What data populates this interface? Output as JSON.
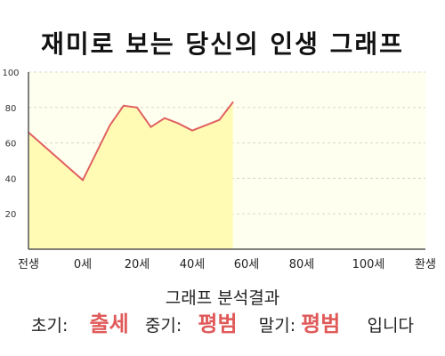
{
  "title": "재미로 보는 당신의 인생 그래프",
  "chart_data": {
    "type": "area",
    "x": [
      -1,
      0,
      10,
      15,
      20,
      25,
      30,
      35,
      40,
      45,
      50,
      55
    ],
    "x_tick_values": [
      -1,
      0,
      20,
      40,
      60,
      80,
      100,
      120
    ],
    "x_tick_labels": [
      "전생",
      "0세",
      "20세",
      "40세",
      "60세",
      "80세",
      "100세",
      "환생"
    ],
    "y_ticks": [
      20,
      40,
      60,
      80,
      100
    ],
    "ylim": [
      0,
      100
    ],
    "values": [
      66,
      39,
      70,
      81,
      80,
      69,
      74,
      71,
      67,
      70,
      73,
      83
    ],
    "colors": {
      "line": "#e06060",
      "fill": "#fffbb5",
      "background_top": "#fffff0",
      "axis": "#555555",
      "grid": "#d8d8c8"
    },
    "grid": true
  },
  "result": {
    "heading": "그래프 분석결과",
    "early_label": "초기:",
    "early_value": "출세",
    "middle_label": "중기:",
    "middle_value": "평범",
    "late_label": "말기:",
    "late_value": "평범",
    "suffix": "입니다"
  }
}
